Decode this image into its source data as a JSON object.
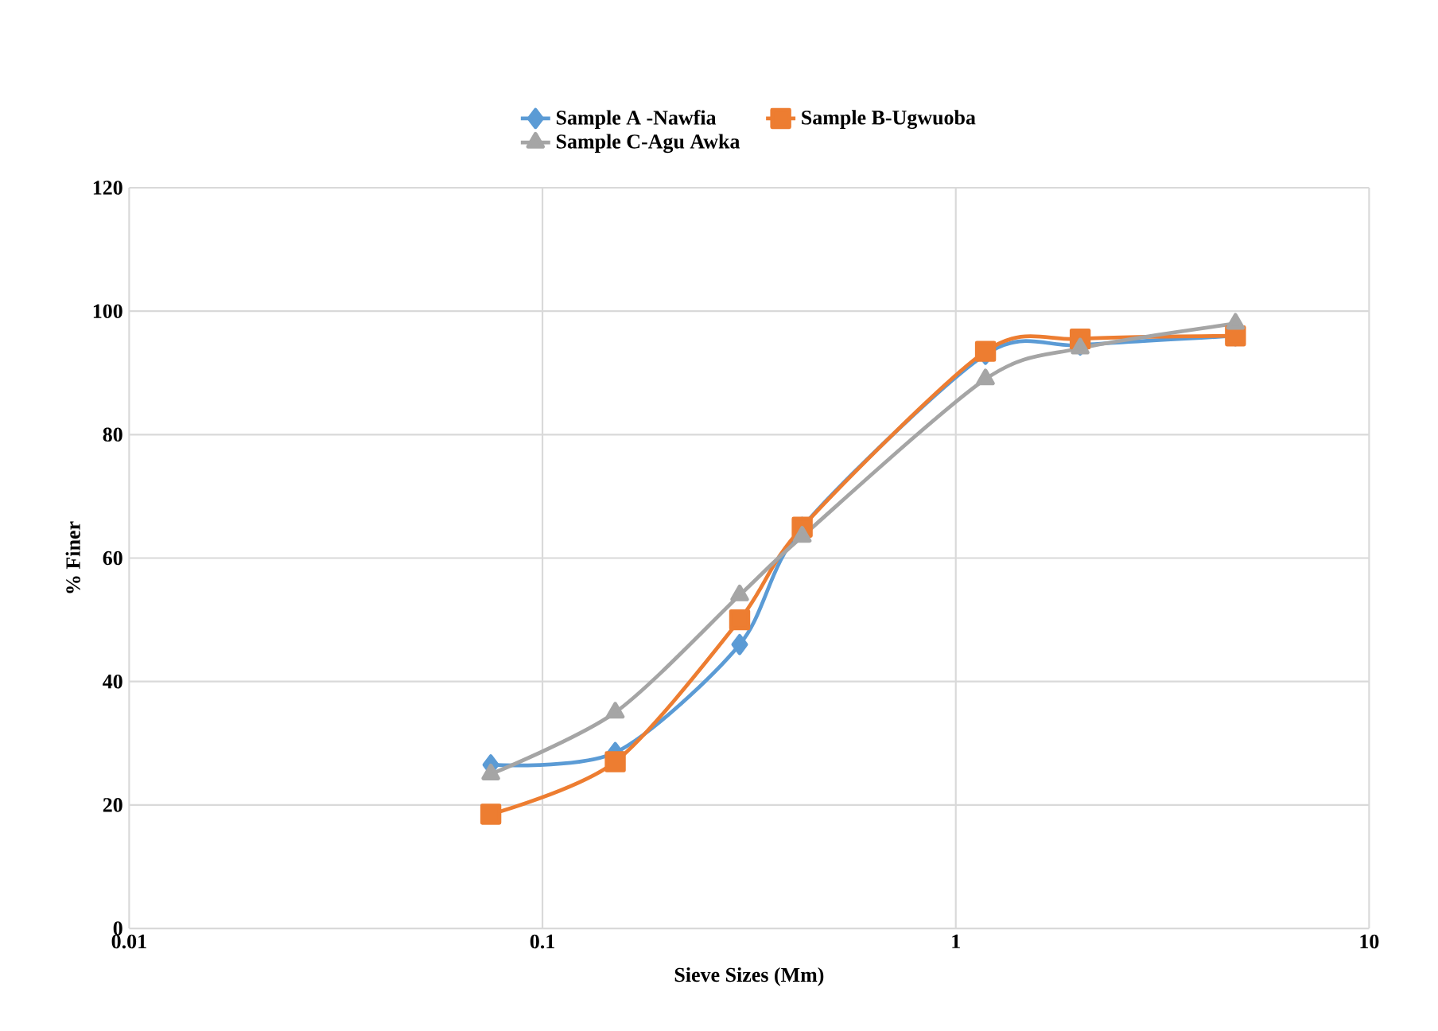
{
  "chart_data": {
    "type": "line",
    "xlabel": "Sieve Sizes (Mm)",
    "ylabel": "% Finer",
    "log": "x",
    "x": [
      0.075,
      0.15,
      0.3,
      0.425,
      1.18,
      2,
      4.75
    ],
    "series": [
      {
        "name": "Sample A -Nawfia",
        "color": "#5b9bd5",
        "marker": "diamond",
        "values": [
          26.5,
          28.5,
          46,
          65,
          93,
          94.5,
          96
        ]
      },
      {
        "name": "Sample B-Ugwuoba",
        "color": "#ed7d31",
        "marker": "square",
        "values": [
          18.5,
          27,
          50,
          65,
          93.5,
          95.5,
          96
        ]
      },
      {
        "name": "Sample C-Agu Awka",
        "color": "#a5a5a5",
        "marker": "triangle",
        "values": [
          25,
          35,
          54,
          63.5,
          89,
          94,
          98
        ]
      }
    ],
    "xlim": [
      0.01,
      10
    ],
    "xticks": [
      0.01,
      0.1,
      1,
      10
    ],
    "ylim": [
      0,
      120
    ],
    "yticks": [
      0,
      20,
      40,
      60,
      80,
      100,
      120
    ],
    "grid": true,
    "legend": "top"
  }
}
